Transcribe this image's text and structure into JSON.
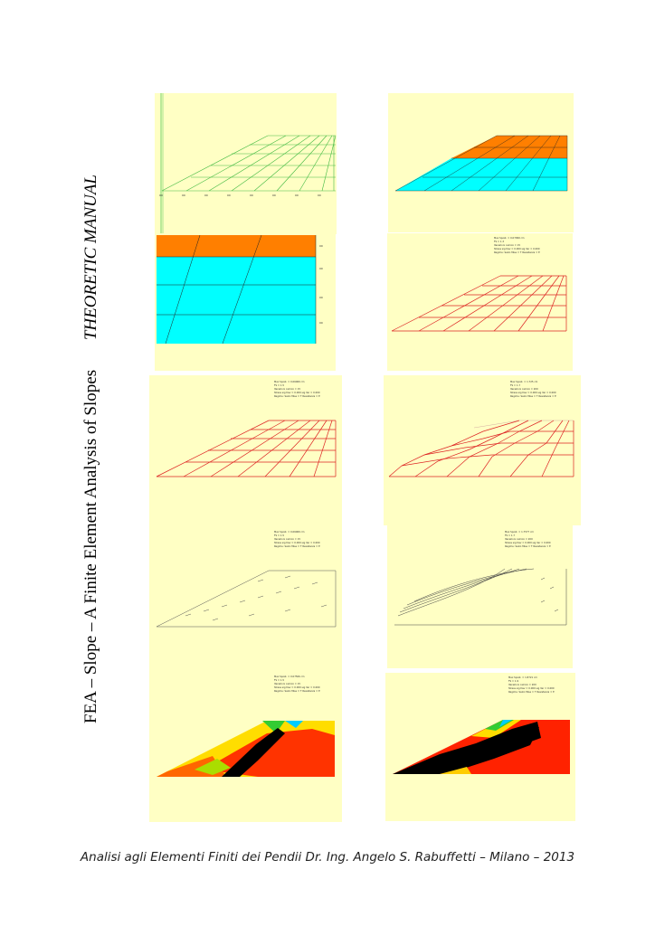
{
  "document": {
    "side_title": "FEA – Slope – A Finite Element Analysis of Slopes",
    "side_subtitle": "THEORETIC  MANUAL",
    "footer": "Analisi agli Elementi Finiti dei Pendii Dr. Ing. Angelo S. Rabuffetti – Milano – 2013"
  },
  "colors": {
    "panel_background": "#ffffc4",
    "soil_upper": "#ff7f00",
    "soil_lower": "#00ffff",
    "mesh_green": "#44cc44",
    "mesh_red": "#dd2222",
    "mesh_grey": "#555555"
  },
  "panels": [
    {
      "id": "p1",
      "content": "green finite element mesh of slope"
    },
    {
      "id": "p2",
      "content": "slope with two soil layers (orange over cyan) and mesh"
    },
    {
      "id": "p3",
      "content": "zoomed soil layers with mesh lines"
    },
    {
      "id": "p4",
      "content": "deformed mesh, red, with result box"
    },
    {
      "id": "p5",
      "content": "deformed mesh, red, with result box"
    },
    {
      "id": "p6",
      "content": "deformed mesh with failure bulge, red, with result box"
    },
    {
      "id": "p7",
      "content": "displacement vectors, grey, with result box"
    },
    {
      "id": "p8",
      "content": "displacement vectors along failure surface, with result box"
    },
    {
      "id": "p9",
      "content": "stress contour map with result box"
    },
    {
      "id": "p10",
      "content": "stress contour map with large black zone, with result box"
    }
  ]
}
